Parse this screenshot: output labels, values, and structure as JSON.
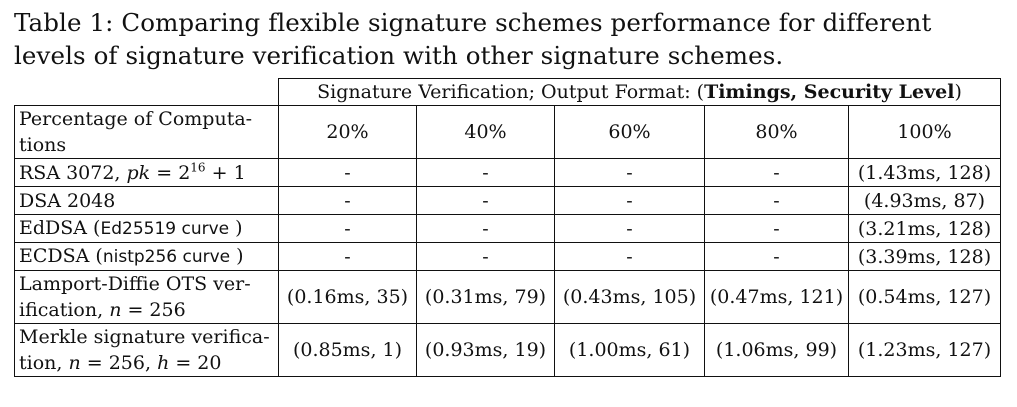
{
  "caption": {
    "label": "Table 1:",
    "text": "Comparing flexible signature schemes performance for different levels of signature verification with other signature schemes."
  },
  "table": {
    "group_header_prefix": "Signature Verification; Output Format: (",
    "group_header_bold": "Timings, Security Level",
    "group_header_suffix": ")",
    "first_col_header": "Percentage of Computa-tions",
    "percent_headers": [
      "20%",
      "40%",
      "60%",
      "80%",
      "100%"
    ],
    "rows": [
      {
        "label_pre": "RSA 3072, ",
        "label_math": "pk",
        "label_mid": " = 2",
        "label_sup": "16",
        "label_post": " + 1",
        "values": [
          "-",
          "-",
          "-",
          "-",
          "(1.43ms,  128)"
        ]
      },
      {
        "label": "DSA 2048",
        "values": [
          "-",
          "-",
          "-",
          "-",
          "(4.93ms,   87)"
        ]
      },
      {
        "label_pre": "EdDSA (",
        "label_sans": "Ed25519 curve",
        "label_post": " )",
        "values": [
          "-",
          "-",
          "-",
          "-",
          "(3.21ms,  128)"
        ]
      },
      {
        "label_pre": "ECDSA (",
        "label_sans": "nistp256 curve",
        "label_post": " )",
        "values": [
          "-",
          "-",
          "-",
          "-",
          "(3.39ms,  128)"
        ]
      },
      {
        "label_pre": "Lamport-Diffie OTS ver-ification, ",
        "label_math": "n",
        "label_post": " = 256",
        "values": [
          "(0.16ms,  35)",
          "(0.31ms,  79)",
          "(0.43ms,  105)",
          "(0.47ms,  121)",
          "(0.54ms,  127)"
        ]
      },
      {
        "label_pre": "Merkle signature verifica-tion, ",
        "label_math": "n",
        "label_mid": " = 256, ",
        "label_math2": "h",
        "label_post": " = 20",
        "values": [
          "(0.85ms,  1)",
          "(0.93ms,  19)",
          "(1.00ms,  61)",
          "(1.06ms,  99)",
          "(1.23ms,  127)"
        ]
      }
    ]
  }
}
